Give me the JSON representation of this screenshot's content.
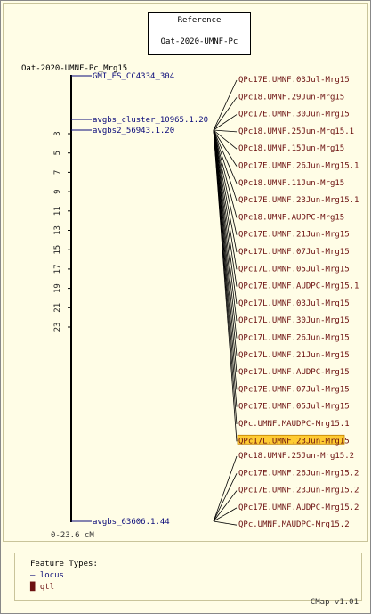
{
  "reference": {
    "title": "Reference",
    "name": "Oat-2020-UMNF-Pc"
  },
  "map_title": "Oat-2020-UMNF-Pc_Mrg15",
  "scale_label": "0-23.6 cM",
  "ticks": [
    "3",
    "5",
    "7",
    "9",
    "11",
    "13",
    "15",
    "17",
    "19",
    "21",
    "23"
  ],
  "loci": [
    "GMI_ES_CC4334_304",
    "avgbs_cluster_10965.1.20",
    "avgbs2_56943.1.20",
    "avgbs_63606.1.44"
  ],
  "qtls": [
    "QPc17E.UMNF.03Jul-Mrg15",
    "QPc18.UMNF.29Jun-Mrg15",
    "QPc17E.UMNF.30Jun-Mrg15",
    "QPc18.UMNF.25Jun-Mrg15.1",
    "QPc18.UMNF.15Jun-Mrg15",
    "QPc17E.UMNF.26Jun-Mrg15.1",
    "QPc18.UMNF.11Jun-Mrg15",
    "QPc17E.UMNF.23Jun-Mrg15.1",
    "QPc18.UMNF.AUDPC-Mrg15",
    "QPc17E.UMNF.21Jun-Mrg15",
    "QPc17L.UMNF.07Jul-Mrg15",
    "QPc17L.UMNF.05Jul-Mrg15",
    "QPc17E.UMNF.AUDPC-Mrg15.1",
    "QPc17L.UMNF.03Jul-Mrg15",
    "QPc17L.UMNF.30Jun-Mrg15",
    "QPc17L.UMNF.26Jun-Mrg15",
    "QPc17L.UMNF.21Jun-Mrg15",
    "QPc17L.UMNF.AUDPC-Mrg15",
    "QPc17E.UMNF.07Jul-Mrg15",
    "QPc17E.UMNF.05Jul-Mrg15",
    "QPc.UMNF.MAUDPC-Mrg15.1",
    "QPc17L.UMNF.23Jun-Mrg15",
    "QPc18.UMNF.25Jun-Mrg15.2",
    "QPc17E.UMNF.26Jun-Mrg15.2",
    "QPc17E.UMNF.23Jun-Mrg15.2",
    "QPc17E.UMNF.AUDPC-Mrg15.2",
    "QPc.UMNF.MAUDPC-Mrg15.2"
  ],
  "highlighted_qtl": "QPc17L.UMNF.23Jun-Mrg15",
  "legend": {
    "title": "Feature Types:",
    "locus": "locus",
    "qtl": "qtl"
  },
  "footer": "CMap v1.01",
  "colors": {
    "locus": "#0b0b7a",
    "qtl": "#6b1010",
    "highlight": "#ffcc33",
    "background": "#fffde6"
  }
}
